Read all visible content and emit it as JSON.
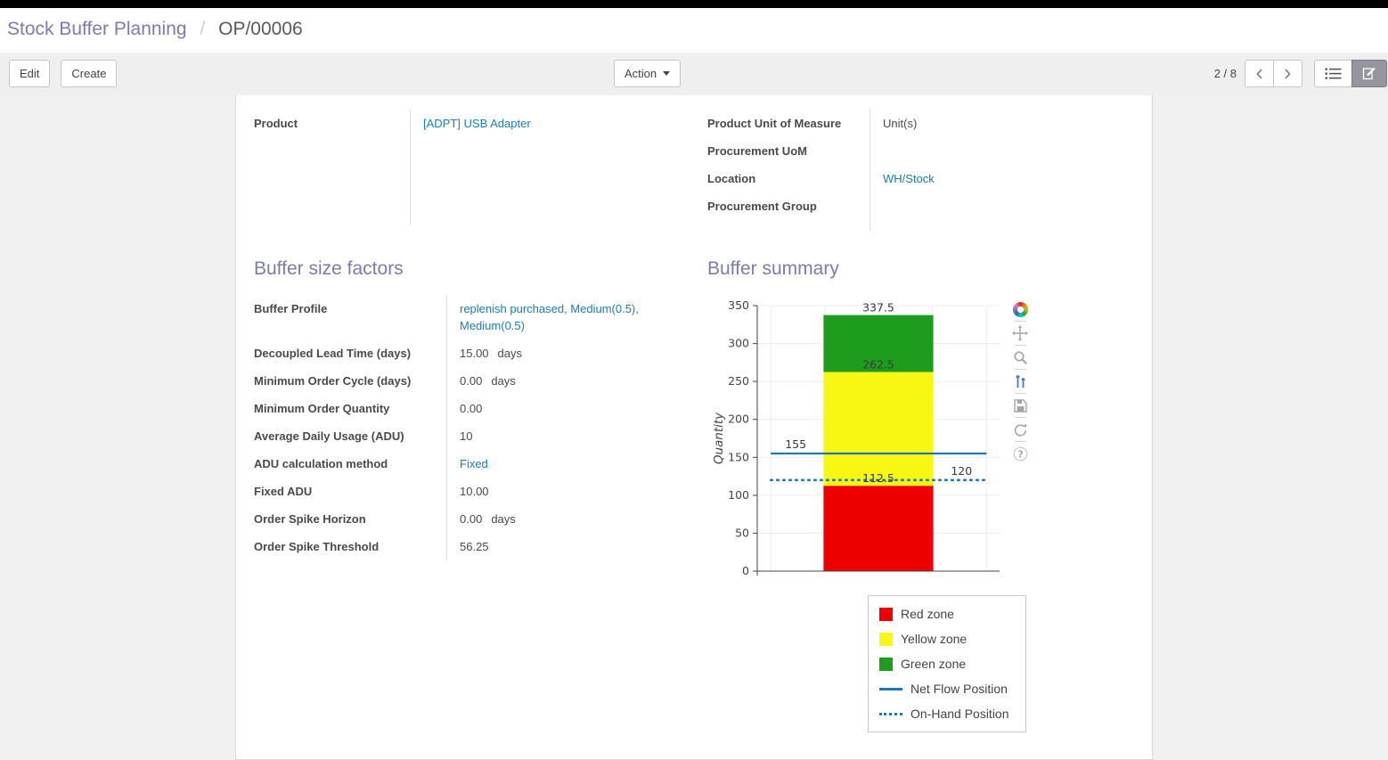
{
  "colors": {
    "accent": "#7c7bad",
    "link": "#1b7eb5",
    "toolbar_icon": "#666666",
    "modebar_icon": "#a6a6a6",
    "modebar_active": "#4c79c9"
  },
  "breadcrumb": {
    "parent": "Stock Buffer Planning",
    "separator": "/",
    "current": "OP/00006"
  },
  "toolbar": {
    "edit_label": "Edit",
    "create_label": "Create",
    "action_label": "Action",
    "pager_value": "2 / 8",
    "icons": [
      "chevron-left-icon",
      "chevron-right-icon",
      "list-view-icon",
      "form-view-icon"
    ]
  },
  "general": {
    "left": [
      {
        "label": "Product",
        "value": "[ADPT] USB Adapter",
        "suffix": "",
        "is_link": true
      }
    ],
    "right": [
      {
        "label": "Product Unit of Measure",
        "value": "Unit(s)",
        "suffix": "",
        "is_link": false
      },
      {
        "label": "Procurement UoM",
        "value": "",
        "suffix": "",
        "is_link": false
      },
      {
        "label": "Location",
        "value": "WH/Stock",
        "suffix": "",
        "is_link": true
      },
      {
        "label": "Procurement Group",
        "value": "",
        "suffix": "",
        "is_link": false
      }
    ]
  },
  "buffer_factors": {
    "title": "Buffer size factors",
    "rows": [
      {
        "label": "Buffer Profile",
        "value": "replenish purchased, Medium(0.5), Medium(0.5)",
        "suffix": "",
        "is_link": true
      },
      {
        "label": "Decoupled Lead Time (days)",
        "value": "15.00",
        "suffix": "days",
        "is_link": false
      },
      {
        "label": "Minimum Order Cycle (days)",
        "value": "0.00",
        "suffix": "days",
        "is_link": false
      },
      {
        "label": "Minimum Order Quantity",
        "value": "0.00",
        "suffix": "",
        "is_link": false
      },
      {
        "label": "Average Daily Usage (ADU)",
        "value": "10",
        "suffix": "",
        "is_link": false
      },
      {
        "label": "ADU calculation method",
        "value": "Fixed",
        "suffix": "",
        "is_link": true
      },
      {
        "label": "Fixed ADU",
        "value": "10.00",
        "suffix": "",
        "is_link": false
      },
      {
        "label": "Order Spike Horizon",
        "value": "0.00",
        "suffix": "days",
        "is_link": false
      },
      {
        "label": "Order Spike Threshold",
        "value": "56.25",
        "suffix": "",
        "is_link": false
      }
    ]
  },
  "buffer_summary": {
    "title": "Buffer summary",
    "chart_data": {
      "type": "bar",
      "stacked": true,
      "title": "",
      "xlabel": "",
      "ylabel": "Quantity",
      "ylim": [
        0,
        350
      ],
      "yticks": [
        0,
        50,
        100,
        150,
        200,
        250,
        300,
        350
      ],
      "grid": true,
      "zones": [
        {
          "name": "Red zone",
          "from": 0,
          "to": 112.5,
          "color": "#ee0000"
        },
        {
          "name": "Yellow zone",
          "from": 112.5,
          "to": 262.5,
          "color": "#f7f713"
        },
        {
          "name": "Green zone",
          "from": 262.5,
          "to": 337.5,
          "color": "#1e9c1e"
        }
      ],
      "lines": [
        {
          "name": "Net Flow Position",
          "value": 155,
          "style": "solid",
          "color": "#1f77b4",
          "label": "155"
        },
        {
          "name": "On-Hand Position",
          "value": 120,
          "style": "dotted",
          "color": "#1f77b4",
          "label": "120"
        }
      ],
      "bar_annotations": [
        {
          "text": "337.5",
          "value": 337.5
        },
        {
          "text": "262.5",
          "value": 262.5
        },
        {
          "text": "112.5",
          "value": 112.5
        }
      ],
      "legend": [
        "Red zone",
        "Yellow zone",
        "Green zone",
        "Net Flow Position",
        "On-Hand Position"
      ],
      "legend_position": "bottom-right",
      "modebar_icons": [
        "plotly-logo-icon",
        "pan-icon",
        "zoom-icon",
        "compare-hover-icon",
        "download-icon",
        "reset-axes-icon",
        "help-icon"
      ]
    }
  }
}
